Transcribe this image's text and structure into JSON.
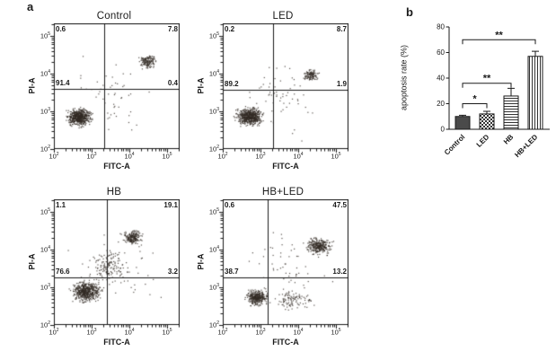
{
  "panel_labels": {
    "a": "a",
    "b": "b"
  },
  "colors": {
    "axis": "#1a1a1a",
    "dot": "rgba(50,42,36,0.8)",
    "bar_solid": "#4a4a4a",
    "pattern_ink": "#333333"
  },
  "chart_data": [
    {
      "type": "scatter",
      "panel": "a",
      "title": "Control",
      "xlabel": "FITC-A",
      "ylabel": "PI-A",
      "x_scale": "log10",
      "y_scale": "log10",
      "decades": [
        2,
        3,
        4,
        5
      ],
      "divider_x": 0.4,
      "divider_y": 0.48,
      "quadrants": {
        "ul": "0.6",
        "ur": "7.8",
        "ll": "91.4",
        "lr": "0.4"
      },
      "clusters": [
        {
          "x": 0.2,
          "y": 0.26,
          "sx": 0.085,
          "sy": 0.06,
          "n": 600
        },
        {
          "x": 0.74,
          "y": 0.7,
          "sx": 0.06,
          "sy": 0.045,
          "n": 150
        },
        {
          "x": 0.45,
          "y": 0.45,
          "sx": 0.3,
          "sy": 0.28,
          "n": 50
        }
      ],
      "seed": 11
    },
    {
      "type": "scatter",
      "panel": "a",
      "title": "LED",
      "xlabel": "FITC-A",
      "ylabel": "PI-A",
      "x_scale": "log10",
      "y_scale": "log10",
      "decades": [
        2,
        3,
        4,
        5
      ],
      "divider_x": 0.4,
      "divider_y": 0.47,
      "quadrants": {
        "ul": "0.2",
        "ur": "8.7",
        "ll": "89.2",
        "lr": "1.9"
      },
      "clusters": [
        {
          "x": 0.21,
          "y": 0.26,
          "sx": 0.09,
          "sy": 0.06,
          "n": 600
        },
        {
          "x": 0.7,
          "y": 0.59,
          "sx": 0.055,
          "sy": 0.04,
          "n": 120
        },
        {
          "x": 0.45,
          "y": 0.42,
          "sx": 0.3,
          "sy": 0.28,
          "n": 60
        }
      ],
      "seed": 23
    },
    {
      "type": "scatter",
      "panel": "a",
      "title": "HB",
      "xlabel": "FITC-A",
      "ylabel": "PI-A",
      "x_scale": "log10",
      "y_scale": "log10",
      "decades": [
        2,
        3,
        4,
        5
      ],
      "divider_x": 0.42,
      "divider_y": 0.38,
      "quadrants": {
        "ul": "1.1",
        "ur": "19.1",
        "ll": "76.6",
        "lr": "3.2"
      },
      "clusters": [
        {
          "x": 0.25,
          "y": 0.27,
          "sx": 0.1,
          "sy": 0.075,
          "n": 550
        },
        {
          "x": 0.62,
          "y": 0.7,
          "sx": 0.065,
          "sy": 0.05,
          "n": 200
        },
        {
          "x": 0.43,
          "y": 0.46,
          "sx": 0.13,
          "sy": 0.12,
          "n": 130
        },
        {
          "x": 0.5,
          "y": 0.45,
          "sx": 0.3,
          "sy": 0.28,
          "n": 60
        }
      ],
      "seed": 37
    },
    {
      "type": "scatter",
      "panel": "a",
      "title": "HB+LED",
      "xlabel": "FITC-A",
      "ylabel": "PI-A",
      "x_scale": "log10",
      "y_scale": "log10",
      "decades": [
        2,
        3,
        4,
        5
      ],
      "divider_x": 0.36,
      "divider_y": 0.38,
      "quadrants": {
        "ul": "0.6",
        "ur": "47.5",
        "ll": "38.7",
        "lr": "13.2"
      },
      "clusters": [
        {
          "x": 0.27,
          "y": 0.22,
          "sx": 0.075,
          "sy": 0.055,
          "n": 350
        },
        {
          "x": 0.76,
          "y": 0.63,
          "sx": 0.085,
          "sy": 0.06,
          "n": 300
        },
        {
          "x": 0.55,
          "y": 0.2,
          "sx": 0.16,
          "sy": 0.07,
          "n": 100
        },
        {
          "x": 0.5,
          "y": 0.45,
          "sx": 0.3,
          "sy": 0.28,
          "n": 60
        }
      ],
      "seed": 51
    },
    {
      "type": "bar",
      "panel": "b",
      "title": "",
      "xlabel": "",
      "ylabel": "apoptosis rate (%)",
      "categories": [
        "Control",
        "LED",
        "HB",
        "HB+LED"
      ],
      "values": [
        10,
        12,
        26,
        57
      ],
      "errors": [
        1,
        2,
        6,
        4
      ],
      "ylim": [
        0,
        80
      ],
      "yticks": [
        0,
        20,
        40,
        60,
        80
      ],
      "bar_patterns": [
        "solid",
        "checker",
        "hlines",
        "vlines"
      ],
      "significance": [
        {
          "from": 0,
          "to": 1,
          "label": "*",
          "height": 20
        },
        {
          "from": 0,
          "to": 2,
          "label": "**",
          "height": 36
        },
        {
          "from": 0,
          "to": 3,
          "label": "**",
          "height": 70
        }
      ]
    }
  ]
}
